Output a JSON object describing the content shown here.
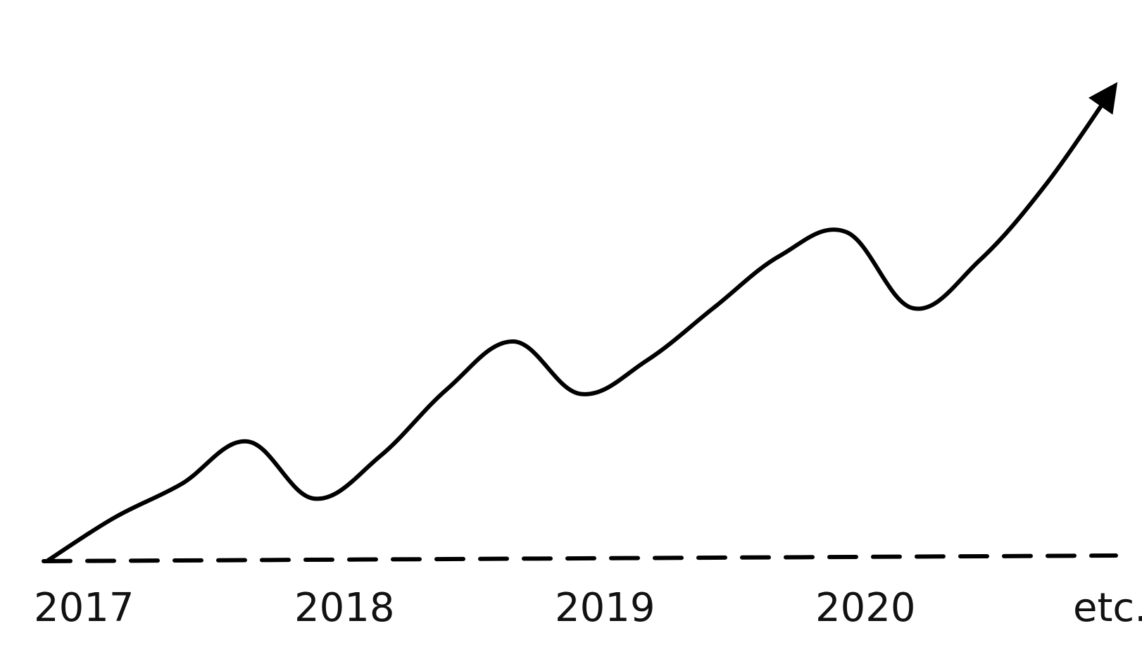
{
  "chart_data": {
    "type": "line",
    "title": "",
    "xlabel": "",
    "ylabel": "",
    "categories": [
      "2017",
      "2018",
      "2019",
      "2020",
      "etc."
    ],
    "x": [
      2017.0,
      2017.25,
      2017.5,
      2017.75,
      2018.0,
      2018.25,
      2018.5,
      2018.75,
      2019.0,
      2019.25,
      2019.5,
      2019.75,
      2020.0,
      2020.25,
      2020.5,
      2020.75,
      2021.0
    ],
    "series": [
      {
        "values": [
          0,
          9,
          16,
          25,
          13,
          22,
          36,
          46,
          35,
          42,
          53,
          64,
          69,
          53,
          63,
          79,
          99
        ]
      }
    ],
    "xlim": [
      2017.0,
      2021.0
    ],
    "ylim": [
      0,
      100
    ],
    "trend": "upward",
    "end_marker": "arrow",
    "grid": false,
    "legend": "none",
    "colors": {
      "line": "#000000",
      "axis": "#000000",
      "background": "#ffffff"
    }
  }
}
